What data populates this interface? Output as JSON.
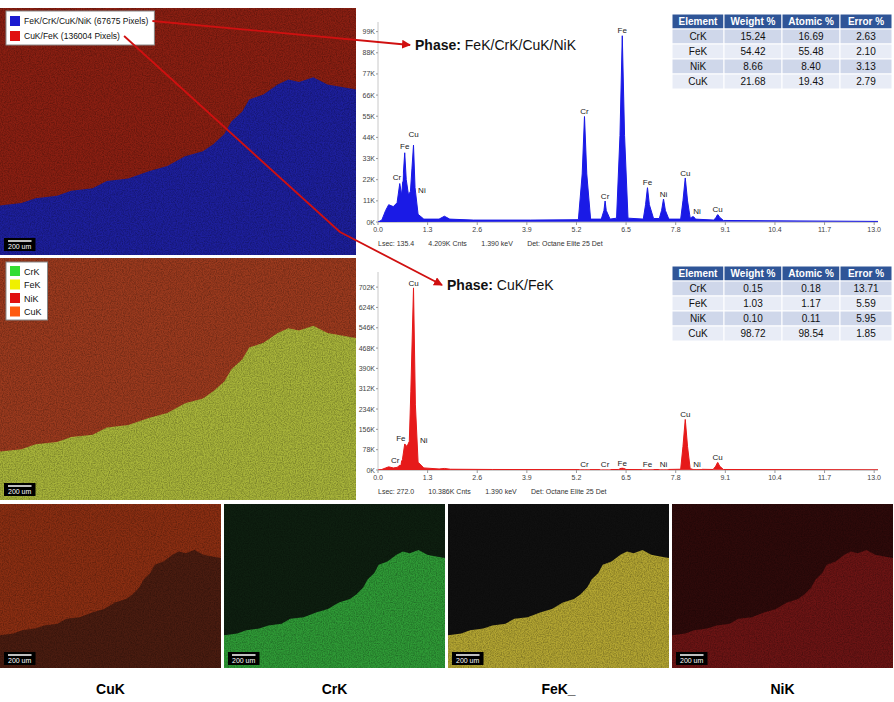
{
  "chart_data": [
    {
      "type": "area",
      "title": "Phase: FeK/CrK/CuK/NiK",
      "x": [
        0,
        0.1,
        0.2,
        0.28,
        0.4,
        0.5,
        0.57,
        0.62,
        0.66,
        0.7,
        0.74,
        0.8,
        0.85,
        0.89,
        0.93,
        0.97,
        1.05,
        1.2,
        1.6,
        1.74,
        1.88,
        2.5,
        4,
        5.25,
        5.35,
        5.41,
        5.47,
        5.57,
        5.85,
        5.92,
        5.95,
        5.98,
        6.08,
        6.25,
        6.34,
        6.4,
        6.46,
        6.55,
        6.95,
        7.01,
        7.06,
        7.11,
        7.22,
        7.37,
        7.43,
        7.48,
        7.53,
        7.62,
        7.93,
        7.99,
        8.05,
        8.11,
        8.18,
        8.22,
        8.26,
        8.32,
        8.8,
        8.86,
        8.9,
        8.95,
        9.05,
        13.1
      ],
      "series": [
        {
          "color": "#1a1ae6",
          "values": [
            0,
            1000,
            6000,
            9000,
            8000,
            10000,
            20000,
            14000,
            24000,
            36000,
            22000,
            14000,
            16000,
            28000,
            40000,
            18000,
            4000,
            1500,
            1500,
            3000,
            1500,
            1000,
            1000,
            1200,
            25000,
            55000,
            25000,
            1500,
            1500,
            6000,
            11000,
            6000,
            1500,
            2000,
            45000,
            97000,
            45000,
            2000,
            1500,
            9000,
            18000,
            9000,
            1800,
            1800,
            6000,
            12000,
            6000,
            1500,
            1500,
            11000,
            23000,
            11000,
            2000,
            2500,
            3000,
            1500,
            1000,
            2500,
            4000,
            2500,
            800,
            300
          ]
        }
      ],
      "xlim": [
        0,
        13.1
      ],
      "ylim": [
        0,
        104000
      ],
      "xticks": [
        {
          "value": 0,
          "label": "0.0"
        },
        1.3,
        2.6,
        3.9,
        5.2,
        6.5,
        7.8,
        9.1,
        10.4,
        11.7,
        {
          "value": 13,
          "label": "13.0"
        }
      ],
      "yticks": [
        {
          "value": 0,
          "label": "0K"
        },
        {
          "value": 11000,
          "label": "11K"
        },
        {
          "value": 22000,
          "label": "22K"
        },
        {
          "value": 33000,
          "label": "33K"
        },
        {
          "value": 44000,
          "label": "44K"
        },
        {
          "value": 55000,
          "label": "55K"
        },
        {
          "value": 66000,
          "label": "66K"
        },
        {
          "value": 77000,
          "label": "77K"
        },
        {
          "value": 88000,
          "label": "88K"
        },
        {
          "value": 99000,
          "label": "99K"
        }
      ],
      "grid": false,
      "annotations": [
        {
          "text": "Cr",
          "x": 0.5,
          "y": 21000
        },
        {
          "text": "Fe",
          "x": 0.7,
          "y": 37000
        },
        {
          "text": "Cu",
          "x": 0.93,
          "y": 43000
        },
        {
          "text": "Ni",
          "x": 1.15,
          "y": 14000
        },
        {
          "text": "Cr",
          "x": 5.41,
          "y": 55000
        },
        {
          "text": "Cr",
          "x": 5.95,
          "y": 11000
        },
        {
          "text": "Fe",
          "x": 6.4,
          "y": 97000
        },
        {
          "text": "Fe",
          "x": 7.06,
          "y": 18000
        },
        {
          "text": "Ni",
          "x": 7.48,
          "y": 12000
        },
        {
          "text": "Cu",
          "x": 8.05,
          "y": 23000
        },
        {
          "text": "Ni",
          "x": 8.36,
          "y": 3000
        },
        {
          "text": "Cu",
          "x": 8.9,
          "y": 4000
        }
      ],
      "footer": [
        "Lsec: 135.4",
        "4.209K Cnts",
        "1.390 keV",
        "Det: Octane Elite 25 Det"
      ],
      "table": {
        "columns": [
          "Element",
          "Weight %",
          "Atomic %",
          "Error %"
        ],
        "rows": [
          [
            "CrK",
            "15.24",
            "16.69",
            "2.63"
          ],
          [
            "FeK",
            "54.42",
            "55.48",
            "2.10"
          ],
          [
            "NiK",
            "8.66",
            "8.40",
            "3.13"
          ],
          [
            "CuK",
            "21.68",
            "19.43",
            "2.79"
          ]
        ]
      }
    },
    {
      "type": "area",
      "title": "Phase: CuK/FeK",
      "x": [
        0,
        0.1,
        0.2,
        0.28,
        0.4,
        0.5,
        0.57,
        0.64,
        0.7,
        0.76,
        0.82,
        0.86,
        0.93,
        0.98,
        1.05,
        1.2,
        1.6,
        1.74,
        1.9,
        3,
        5.3,
        5.41,
        5.5,
        5.85,
        5.95,
        6.05,
        6.3,
        6.4,
        6.5,
        6.95,
        7.06,
        7.15,
        7.4,
        7.48,
        7.56,
        7.93,
        7.99,
        8.05,
        8.11,
        8.18,
        8.26,
        8.35,
        8.78,
        8.85,
        8.9,
        8.95,
        9.05,
        13.1
      ],
      "series": [
        {
          "color": "#e61a1a",
          "values": [
            0,
            2000,
            8000,
            12000,
            8000,
            10000,
            18000,
            40000,
            100000,
            90000,
            110000,
            300000,
            700000,
            250000,
            30000,
            8000,
            4000,
            6000,
            3000,
            2000,
            1500,
            3000,
            1500,
            1500,
            2500,
            1500,
            2000,
            9000,
            2000,
            1500,
            3000,
            1500,
            2000,
            3000,
            2000,
            3000,
            90000,
            195000,
            90000,
            4000,
            4000,
            3000,
            2000,
            15000,
            30000,
            15000,
            2000,
            800
          ]
        }
      ],
      "xlim": [
        0,
        13.1
      ],
      "ylim": [
        0,
        760000
      ],
      "xticks": [
        {
          "value": 0,
          "label": "0.0"
        },
        1.3,
        2.6,
        3.9,
        5.2,
        6.5,
        7.8,
        9.1,
        10.4,
        11.7,
        {
          "value": 13,
          "label": "13.0"
        }
      ],
      "yticks": [
        {
          "value": 0,
          "label": "0K"
        },
        {
          "value": 78000,
          "label": "78K"
        },
        {
          "value": 156000,
          "label": "156K"
        },
        {
          "value": 234000,
          "label": "234K"
        },
        {
          "value": 312000,
          "label": "312K"
        },
        {
          "value": 390000,
          "label": "390K"
        },
        {
          "value": 468000,
          "label": "468K"
        },
        {
          "value": 546000,
          "label": "546K"
        },
        {
          "value": 624000,
          "label": "624K"
        },
        {
          "value": 702000,
          "label": "702K"
        }
      ],
      "grid": false,
      "annotations": [
        {
          "text": "Cr",
          "x": 0.45,
          "y": 20000
        },
        {
          "text": "Fe",
          "x": 0.6,
          "y": 105000
        },
        {
          "text": "Cu",
          "x": 0.93,
          "y": 700000
        },
        {
          "text": "Ni",
          "x": 1.2,
          "y": 95000
        },
        {
          "text": "Cr",
          "x": 5.41,
          "y": 3000
        },
        {
          "text": "Cr",
          "x": 5.95,
          "y": 2500
        },
        {
          "text": "Fe",
          "x": 6.4,
          "y": 9000
        },
        {
          "text": "Fe",
          "x": 7.06,
          "y": 3000
        },
        {
          "text": "Ni",
          "x": 7.48,
          "y": 3000
        },
        {
          "text": "Cu",
          "x": 8.05,
          "y": 195000
        },
        {
          "text": "Ni",
          "x": 8.36,
          "y": 4000
        },
        {
          "text": "Cu",
          "x": 8.9,
          "y": 30000
        }
      ],
      "footer": [
        "Lsec: 272.0",
        "10.386K Cnts",
        "1.390 keV",
        "Det: Octane Elite 25 Det"
      ],
      "table": {
        "columns": [
          "Element",
          "Weight %",
          "Atomic %",
          "Error %"
        ],
        "rows": [
          [
            "CrK",
            "0.15",
            "0.18",
            "13.71"
          ],
          [
            "FeK",
            "1.03",
            "1.17",
            "5.59"
          ],
          [
            "NiK",
            "0.10",
            "0.11",
            "5.95"
          ],
          [
            "CuK",
            "98.72",
            "98.54",
            "1.85"
          ]
        ]
      }
    }
  ],
  "phase_map": {
    "legend": [
      {
        "label": "FeK/CrK/CuK/NiK (67675 Pixels)",
        "color": "#1a1ad0"
      },
      {
        "label": "CuK/FeK (136004 Pixels)",
        "color": "#e01010"
      }
    ],
    "scale_bar": "200 um"
  },
  "element_map": {
    "legend": [
      {
        "label": "CrK",
        "color": "#33dd33"
      },
      {
        "label": "FeK",
        "color": "#f0f000"
      },
      {
        "label": "NiK",
        "color": "#e01010"
      },
      {
        "label": "CuK",
        "color": "#ff5a10"
      }
    ],
    "scale_bar": "200 um"
  },
  "element_panels": [
    {
      "caption": "CuK",
      "scale_bar": "200 um"
    },
    {
      "caption": "CrK",
      "scale_bar": "200 um"
    },
    {
      "caption": "FeK_",
      "scale_bar": "200 um"
    },
    {
      "caption": "NiK",
      "scale_bar": "200 um"
    }
  ]
}
